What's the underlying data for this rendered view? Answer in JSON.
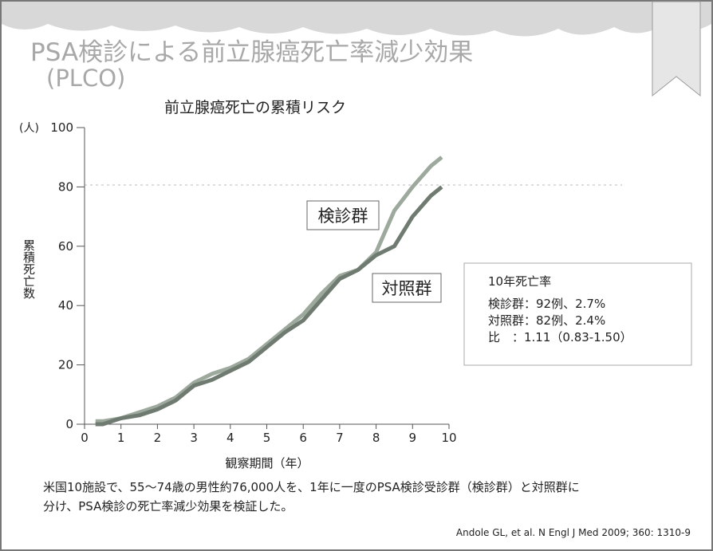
{
  "slide": {
    "title": "PSA検診による前立腺癌死亡率減少効果",
    "subtitle": "(PLCO)",
    "note_lines": [
      "米国10施設で、55～74歳の男性約76,000人を、1年に一度のPSA検診受診群（検診群）と対照群に",
      "分け、PSA検診の死亡率減少効果を検証した。"
    ],
    "citation": "Andole GL, et al. N Engl J Med 2009; 360: 1310-9"
  },
  "chart_data": {
    "type": "line",
    "title": "前立腺癌死亡の累積リスク",
    "x_label": "観察期間（年）",
    "y_label": "累積死亡数",
    "y_unit": "(人)",
    "x": [
      0.3,
      0.5,
      1,
      1.5,
      2,
      2.5,
      3,
      3.5,
      4,
      4.5,
      5,
      5.5,
      6,
      6.5,
      7,
      7.5,
      8,
      8.5,
      9,
      9.5,
      9.8
    ],
    "series": [
      {
        "name": "検診群",
        "color": "#9da99d",
        "values": [
          1,
          1,
          2,
          4,
          6,
          9,
          14,
          17,
          19,
          22,
          27,
          32,
          37,
          44,
          50,
          52,
          58,
          72,
          80,
          87,
          90
        ]
      },
      {
        "name": "対照群",
        "color": "#6f7a70",
        "values": [
          0,
          0,
          2,
          3,
          5,
          8,
          13,
          15,
          18,
          21,
          26,
          31,
          35,
          42,
          49,
          52,
          57,
          60,
          70,
          77,
          80
        ]
      }
    ],
    "xlim": [
      0,
      10
    ],
    "xticks": [
      0,
      1,
      2,
      3,
      4,
      5,
      6,
      7,
      8,
      9,
      10
    ],
    "ylim": [
      0,
      100
    ],
    "yticks": [
      0,
      20,
      40,
      60,
      80,
      100
    ],
    "grid": false,
    "info_box": {
      "title": "10年死亡率",
      "lines": [
        "検診群：92例、2.7%",
        "対照群：82例、2.4%",
        "比　：1.11（0.83-1.50）"
      ]
    }
  }
}
